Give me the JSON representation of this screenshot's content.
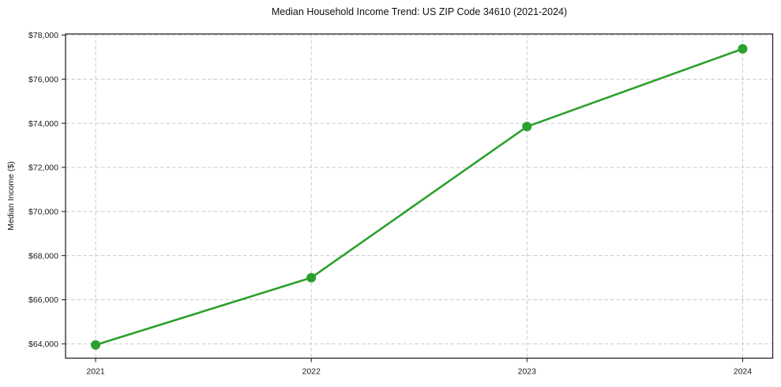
{
  "chart_data": {
    "type": "line",
    "title": "Median Household Income Trend: US ZIP Code 34610 (2021-2024)",
    "xlabel": "",
    "ylabel": "Median Income ($)",
    "x": [
      2021,
      2022,
      2023,
      2024
    ],
    "x_tick_labels": [
      "2021",
      "2022",
      "2023",
      "2024"
    ],
    "series": [
      {
        "name": "Median Household Income",
        "values": [
          63950,
          67000,
          73850,
          77375
        ]
      }
    ],
    "y_tick_values": [
      64000,
      66000,
      68000,
      70000,
      72000,
      74000,
      76000,
      78000
    ],
    "y_tick_labels": [
      "$64,000",
      "$66,000",
      "$68,000",
      "$70,000",
      "$72,000",
      "$74,000",
      "$76,000",
      "$78,000"
    ],
    "ylim": [
      63350,
      78050
    ],
    "x_margin_frac": 0.0425,
    "grid": "dashed, both axes",
    "legend": "none",
    "colors": {
      "line": "#2ca02c",
      "marker": "#2ca02c",
      "grid": "#c9c9c9",
      "spine": "#262626",
      "text": "#1a1a1a",
      "background": "#ffffff"
    }
  }
}
